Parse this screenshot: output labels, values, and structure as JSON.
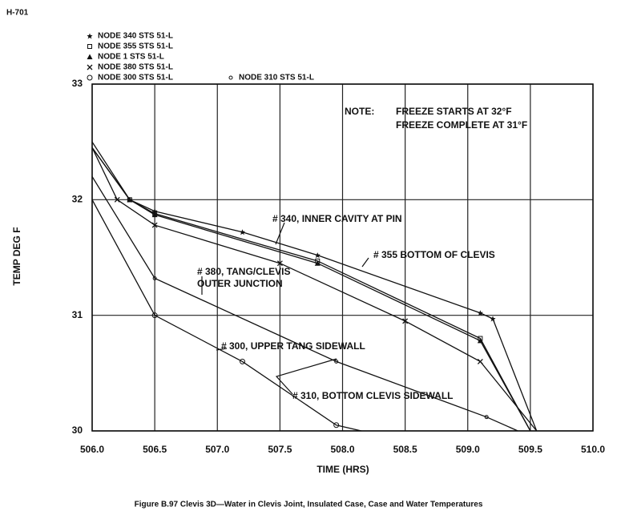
{
  "chart_data": {
    "type": "line",
    "page_id": "H-701",
    "caption": "Figure B.97 Clevis 3D—Water in Clevis Joint, Insulated Case, Case and Water Temperatures",
    "x_label": "TIME (HRS)",
    "y_label": "TEMP DEG F",
    "xlim": [
      506,
      510
    ],
    "ylim": [
      30,
      33
    ],
    "xticks": [
      {
        "value": 506,
        "label": "506.0"
      },
      506.5,
      {
        "value": 507,
        "label": "507.0"
      },
      507.5,
      {
        "value": 508,
        "label": "508.0"
      },
      508.5,
      {
        "value": 509,
        "label": "509.0"
      },
      509.5,
      {
        "value": 510,
        "label": "510.0"
      }
    ],
    "yticks": [
      30,
      31,
      32,
      33
    ],
    "grid": true,
    "color": "#111111",
    "series": [
      {
        "name": "NODE 340 STS 51-L",
        "marker": "star",
        "x": [
          506.0,
          506.3,
          506.5,
          507.2,
          507.8,
          509.1,
          509.2,
          509.55
        ],
        "values": [
          32.5,
          32.0,
          31.9,
          31.72,
          31.52,
          31.02,
          30.97,
          30.0
        ]
      },
      {
        "name": "NODE 355 STS 51-L",
        "marker": "square",
        "x": [
          506.0,
          506.3,
          506.5,
          507.8,
          509.1,
          509.5
        ],
        "values": [
          32.45,
          32.0,
          31.88,
          31.47,
          30.8,
          30.0
        ]
      },
      {
        "name": "NODE 1 STS 51-L",
        "marker": "triangle",
        "x": [
          506.0,
          506.3,
          506.5,
          507.8,
          509.1,
          509.5
        ],
        "values": [
          32.45,
          32.0,
          31.87,
          31.45,
          30.78,
          30.0
        ]
      },
      {
        "name": "NODE 380 STS 51-L",
        "marker": "cross",
        "x": [
          506.0,
          506.2,
          506.5,
          507.5,
          508.5,
          509.1,
          509.55
        ],
        "values": [
          32.45,
          32.0,
          31.78,
          31.45,
          30.95,
          30.6,
          30.0
        ]
      },
      {
        "name": "NODE 300 STS 51-L",
        "marker": "circle",
        "x": [
          506.0,
          506.5,
          507.2,
          507.95,
          508.15
        ],
        "values": [
          32.0,
          31.0,
          30.6,
          30.05,
          30.0
        ]
      },
      {
        "name": "NODE 310 STS 51-L",
        "marker": "dot",
        "x": [
          506.0,
          506.5,
          507.95,
          509.15,
          509.4
        ],
        "values": [
          32.2,
          31.32,
          30.6,
          30.12,
          30.0
        ]
      }
    ],
    "note": [
      "NOTE:",
      "FREEZE STARTS AT 32°F",
      "FREEZE COMPLETE AT 31°F"
    ],
    "annotations": [
      "# 340, INNER CAVITY AT PIN",
      "# 355 BOTTOM OF CLEVIS",
      "# 380, TANG/CLEVIS",
      "OUTER JUNCTION",
      "# 300, UPPER TANG SIDEWALL",
      "# 310, BOTTOM CLEVIS SIDEWALL"
    ]
  }
}
